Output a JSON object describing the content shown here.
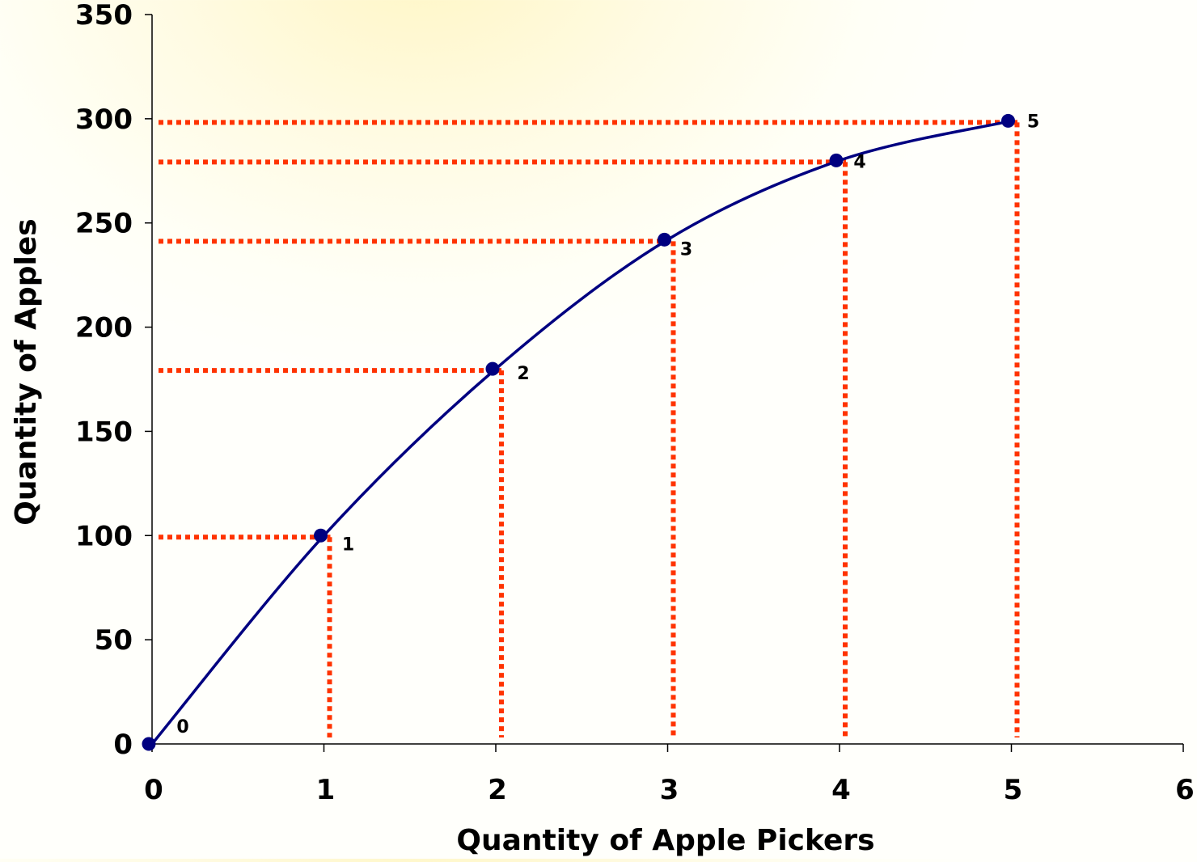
{
  "chart_data": {
    "type": "line",
    "title": "",
    "xlabel": "Quantity of Apple Pickers",
    "ylabel": "Quantity of Apples",
    "xlim": [
      0,
      6
    ],
    "ylim": [
      0,
      350
    ],
    "x_ticks": [
      "0",
      "1",
      "2",
      "3",
      "4",
      "5",
      "6"
    ],
    "y_ticks": [
      "0",
      "50",
      "100",
      "150",
      "200",
      "250",
      "300",
      "350"
    ],
    "grid": false,
    "legend": "none",
    "series": [
      {
        "x": [
          0,
          1,
          2,
          3,
          4,
          5
        ],
        "values": [
          0,
          100,
          180,
          242,
          280,
          299
        ],
        "point_labels": [
          "0",
          "1",
          "2",
          "3",
          "4",
          "5"
        ],
        "color": "#000080"
      }
    ],
    "reference_lines": {
      "color": "#ff3300",
      "style": "dotted",
      "note_points": [
        1,
        2,
        3,
        4,
        5
      ]
    }
  }
}
